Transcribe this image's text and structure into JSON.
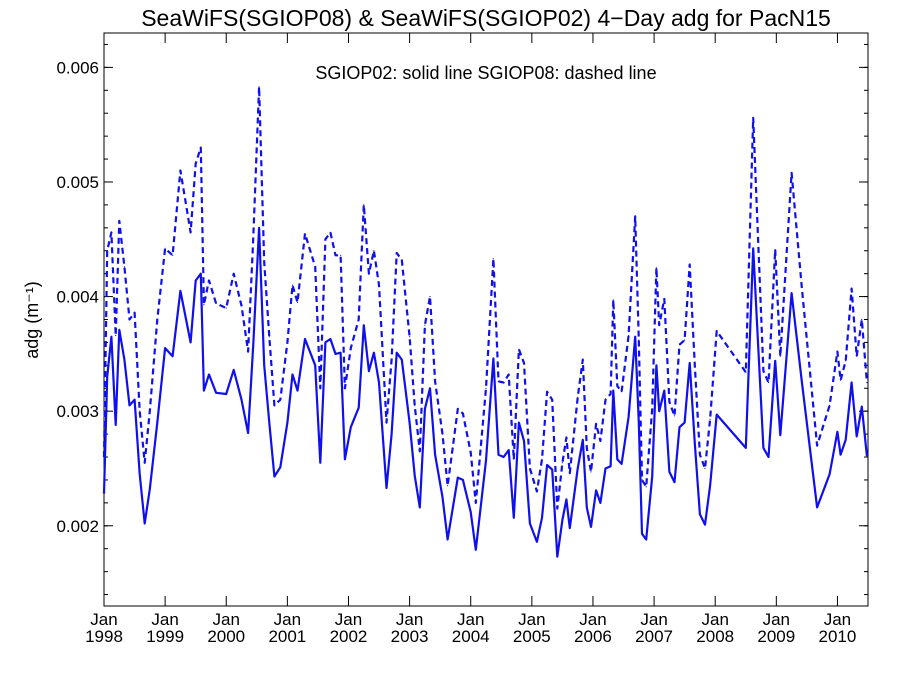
{
  "chart_data": {
    "type": "line",
    "title": "SeaWiFS(SGIOP08) & SeaWiFS(SGIOP02) 4−Day adg for PacN15",
    "ylabel": "adg (m⁻¹)",
    "xlabel": "",
    "annotation": "SGIOP02: solid line   SGIOP08: dashed line",
    "xlim": [
      "1998-01-01",
      "2010-07-01"
    ],
    "ylim": [
      0.0013,
      0.0063
    ],
    "y_ticks": [
      "0.002",
      "0.003",
      "0.004",
      "0.005",
      "0.006"
    ],
    "x_tick_month": "Jan",
    "x_tick_years": [
      "1998",
      "1999",
      "2000",
      "2001",
      "2002",
      "2003",
      "2004",
      "2005",
      "2006",
      "2007",
      "2008",
      "2009",
      "2010"
    ],
    "color": "#1010ee",
    "series": [
      {
        "name": "SGIOP02",
        "style": "solid",
        "points": [
          [
            "1998-01-01",
            0.00228
          ],
          [
            "1998-01-20",
            0.0033
          ],
          [
            "1998-02-15",
            0.00365
          ],
          [
            "1998-03-10",
            0.00288
          ],
          [
            "1998-04-01",
            0.00371
          ],
          [
            "1998-05-01",
            0.00345
          ],
          [
            "1998-06-01",
            0.00305
          ],
          [
            "1998-07-01",
            0.0031
          ],
          [
            "1998-08-01",
            0.00245
          ],
          [
            "1998-09-01",
            0.00202
          ],
          [
            "1998-10-01",
            0.00232
          ],
          [
            "1998-11-15",
            0.0029
          ],
          [
            "1999-01-01",
            0.00355
          ],
          [
            "1999-02-15",
            0.00348
          ],
          [
            "1999-04-01",
            0.00405
          ],
          [
            "1999-06-01",
            0.0036
          ],
          [
            "1999-07-01",
            0.00414
          ],
          [
            "1999-08-01",
            0.0042
          ],
          [
            "1999-08-20",
            0.00318
          ],
          [
            "1999-09-20",
            0.00332
          ],
          [
            "1999-11-01",
            0.00316
          ],
          [
            "2000-01-01",
            0.00315
          ],
          [
            "2000-02-15",
            0.00336
          ],
          [
            "2000-04-01",
            0.0031
          ],
          [
            "2000-05-10",
            0.00281
          ],
          [
            "2000-06-10",
            0.00357
          ],
          [
            "2000-07-15",
            0.0046
          ],
          [
            "2000-08-15",
            0.0034
          ],
          [
            "2000-09-15",
            0.0029
          ],
          [
            "2000-10-15",
            0.00243
          ],
          [
            "2000-11-20",
            0.00251
          ],
          [
            "2001-01-01",
            0.0029
          ],
          [
            "2001-02-01",
            0.00332
          ],
          [
            "2001-03-01",
            0.00318
          ],
          [
            "2001-04-15",
            0.00363
          ],
          [
            "2001-06-15",
            0.0034
          ],
          [
            "2001-07-15",
            0.00255
          ],
          [
            "2001-08-15",
            0.0036
          ],
          [
            "2001-09-15",
            0.00363
          ],
          [
            "2001-10-15",
            0.0035
          ],
          [
            "2001-11-15",
            0.00351
          ],
          [
            "2001-12-10",
            0.00258
          ],
          [
            "2002-01-15",
            0.00286
          ],
          [
            "2002-03-01",
            0.00303
          ],
          [
            "2002-04-01",
            0.00375
          ],
          [
            "2002-05-01",
            0.00335
          ],
          [
            "2002-06-01",
            0.00351
          ],
          [
            "2002-07-01",
            0.00325
          ],
          [
            "2002-08-15",
            0.00233
          ],
          [
            "2002-09-15",
            0.0028
          ],
          [
            "2002-10-15",
            0.00351
          ],
          [
            "2002-11-15",
            0.00345
          ],
          [
            "2003-01-01",
            0.0029
          ],
          [
            "2003-02-01",
            0.00244
          ],
          [
            "2003-03-01",
            0.00216
          ],
          [
            "2003-04-01",
            0.00302
          ],
          [
            "2003-05-01",
            0.0032
          ],
          [
            "2003-06-01",
            0.00262
          ],
          [
            "2003-07-15",
            0.00225
          ],
          [
            "2003-08-15",
            0.00188
          ],
          [
            "2003-09-15",
            0.00215
          ],
          [
            "2003-10-15",
            0.00242
          ],
          [
            "2003-11-15",
            0.0024
          ],
          [
            "2004-01-01",
            0.00212
          ],
          [
            "2004-02-01",
            0.00179
          ],
          [
            "2004-03-01",
            0.00218
          ],
          [
            "2004-04-01",
            0.00257
          ],
          [
            "2004-05-15",
            0.00346
          ],
          [
            "2004-06-15",
            0.00262
          ],
          [
            "2004-07-15",
            0.0026
          ],
          [
            "2004-08-15",
            0.00266
          ],
          [
            "2004-09-15",
            0.00207
          ],
          [
            "2004-10-15",
            0.0029
          ],
          [
            "2004-11-15",
            0.00274
          ],
          [
            "2004-12-20",
            0.00202
          ],
          [
            "2005-02-01",
            0.00186
          ],
          [
            "2005-03-01",
            0.00207
          ],
          [
            "2005-04-01",
            0.00253
          ],
          [
            "2005-05-01",
            0.00249
          ],
          [
            "2005-06-01",
            0.00173
          ],
          [
            "2005-07-01",
            0.00205
          ],
          [
            "2005-07-25",
            0.00223
          ],
          [
            "2005-08-15",
            0.00198
          ],
          [
            "2005-10-01",
            0.0025
          ],
          [
            "2005-11-01",
            0.00275
          ],
          [
            "2005-11-25",
            0.00216
          ],
          [
            "2005-12-20",
            0.00199
          ],
          [
            "2006-01-20",
            0.00231
          ],
          [
            "2006-02-15",
            0.0022
          ],
          [
            "2006-03-15",
            0.0025
          ],
          [
            "2006-04-15",
            0.00252
          ],
          [
            "2006-05-01",
            0.00318
          ],
          [
            "2006-05-25",
            0.00258
          ],
          [
            "2006-06-20",
            0.00254
          ],
          [
            "2006-08-01",
            0.00295
          ],
          [
            "2006-09-10",
            0.00365
          ],
          [
            "2006-10-01",
            0.0029
          ],
          [
            "2006-10-20",
            0.00193
          ],
          [
            "2006-11-15",
            0.00188
          ],
          [
            "2006-12-20",
            0.00243
          ],
          [
            "2007-01-15",
            0.0034
          ],
          [
            "2007-02-01",
            0.003
          ],
          [
            "2007-03-01",
            0.00318
          ],
          [
            "2007-04-01",
            0.00247
          ],
          [
            "2007-05-01",
            0.00238
          ],
          [
            "2007-06-01",
            0.00286
          ],
          [
            "2007-07-01",
            0.0029
          ],
          [
            "2007-08-01",
            0.00342
          ],
          [
            "2007-09-01",
            0.00272
          ],
          [
            "2007-10-01",
            0.0021
          ],
          [
            "2007-11-01",
            0.00201
          ],
          [
            "2007-12-01",
            0.00235
          ],
          [
            "2008-01-10",
            0.00297
          ],
          [
            "2008-07-01",
            0.00268
          ],
          [
            "2008-08-15",
            0.00442
          ],
          [
            "2008-10-15",
            0.00268
          ],
          [
            "2008-11-15",
            0.0026
          ],
          [
            "2008-12-25",
            0.00344
          ],
          [
            "2009-01-25",
            0.00279
          ],
          [
            "2009-04-01",
            0.00403
          ],
          [
            "2009-06-01",
            0.00326
          ],
          [
            "2009-09-01",
            0.00216
          ],
          [
            "2009-11-15",
            0.00245
          ],
          [
            "2010-01-01",
            0.00282
          ],
          [
            "2010-01-20",
            0.00262
          ],
          [
            "2010-02-20",
            0.00275
          ],
          [
            "2010-03-25",
            0.00325
          ],
          [
            "2010-04-25",
            0.00278
          ],
          [
            "2010-05-25",
            0.00304
          ],
          [
            "2010-06-25",
            0.00261
          ]
        ]
      },
      {
        "name": "SGIOP08",
        "style": "dashed",
        "points": [
          [
            "1998-01-01",
            0.0026
          ],
          [
            "1998-01-20",
            0.0044
          ],
          [
            "1998-02-15",
            0.00456
          ],
          [
            "1998-03-10",
            0.00366
          ],
          [
            "1998-04-01",
            0.00466
          ],
          [
            "1998-05-01",
            0.00426
          ],
          [
            "1998-06-01",
            0.0038
          ],
          [
            "1998-07-01",
            0.00386
          ],
          [
            "1998-08-01",
            0.003
          ],
          [
            "1998-09-01",
            0.00255
          ],
          [
            "1998-10-01",
            0.003
          ],
          [
            "1998-11-15",
            0.0038
          ],
          [
            "1999-01-01",
            0.00442
          ],
          [
            "1999-02-15",
            0.00436
          ],
          [
            "1999-04-01",
            0.0051
          ],
          [
            "1999-06-01",
            0.00456
          ],
          [
            "1999-07-01",
            0.00516
          ],
          [
            "1999-08-01",
            0.0053
          ],
          [
            "1999-08-20",
            0.00393
          ],
          [
            "1999-09-20",
            0.00414
          ],
          [
            "1999-11-01",
            0.00394
          ],
          [
            "2000-01-01",
            0.0039
          ],
          [
            "2000-02-15",
            0.0042
          ],
          [
            "2000-04-01",
            0.00392
          ],
          [
            "2000-05-10",
            0.00352
          ],
          [
            "2000-06-10",
            0.0045
          ],
          [
            "2000-07-15",
            0.00583
          ],
          [
            "2000-08-15",
            0.0043
          ],
          [
            "2000-09-15",
            0.00365
          ],
          [
            "2000-10-15",
            0.00305
          ],
          [
            "2000-11-20",
            0.0031
          ],
          [
            "2001-01-01",
            0.0036
          ],
          [
            "2001-02-01",
            0.0041
          ],
          [
            "2001-03-01",
            0.00395
          ],
          [
            "2001-04-15",
            0.00455
          ],
          [
            "2001-06-15",
            0.00426
          ],
          [
            "2001-07-15",
            0.0032
          ],
          [
            "2001-08-15",
            0.0045
          ],
          [
            "2001-09-15",
            0.00456
          ],
          [
            "2001-10-15",
            0.00436
          ],
          [
            "2001-11-15",
            0.00436
          ],
          [
            "2001-12-10",
            0.0032
          ],
          [
            "2002-01-15",
            0.00355
          ],
          [
            "2002-03-01",
            0.0038
          ],
          [
            "2002-04-01",
            0.0048
          ],
          [
            "2002-05-01",
            0.0042
          ],
          [
            "2002-06-01",
            0.0044
          ],
          [
            "2002-07-01",
            0.0041
          ],
          [
            "2002-08-15",
            0.0029
          ],
          [
            "2002-09-15",
            0.00345
          ],
          [
            "2002-10-15",
            0.00438
          ],
          [
            "2002-11-15",
            0.00432
          ],
          [
            "2003-01-01",
            0.00365
          ],
          [
            "2003-02-01",
            0.00305
          ],
          [
            "2003-03-01",
            0.00265
          ],
          [
            "2003-04-01",
            0.00375
          ],
          [
            "2003-05-01",
            0.004
          ],
          [
            "2003-06-01",
            0.00326
          ],
          [
            "2003-07-15",
            0.0028
          ],
          [
            "2003-08-15",
            0.00235
          ],
          [
            "2003-09-15",
            0.00268
          ],
          [
            "2003-10-15",
            0.00302
          ],
          [
            "2003-11-15",
            0.00298
          ],
          [
            "2004-01-01",
            0.00264
          ],
          [
            "2004-02-01",
            0.0022
          ],
          [
            "2004-03-01",
            0.0027
          ],
          [
            "2004-04-01",
            0.0032
          ],
          [
            "2004-05-15",
            0.00433
          ],
          [
            "2004-06-15",
            0.00326
          ],
          [
            "2004-07-15",
            0.00325
          ],
          [
            "2004-08-15",
            0.00332
          ],
          [
            "2004-09-15",
            0.00258
          ],
          [
            "2004-10-15",
            0.00354
          ],
          [
            "2004-11-15",
            0.00342
          ],
          [
            "2004-12-20",
            0.0025
          ],
          [
            "2005-02-01",
            0.0023
          ],
          [
            "2005-03-01",
            0.00258
          ],
          [
            "2005-04-01",
            0.00317
          ],
          [
            "2005-05-01",
            0.0031
          ],
          [
            "2005-06-01",
            0.00215
          ],
          [
            "2005-07-01",
            0.00255
          ],
          [
            "2005-07-25",
            0.00277
          ],
          [
            "2005-08-15",
            0.00246
          ],
          [
            "2005-10-01",
            0.00312
          ],
          [
            "2005-11-01",
            0.00345
          ],
          [
            "2005-11-25",
            0.00268
          ],
          [
            "2005-12-20",
            0.00247
          ],
          [
            "2006-01-20",
            0.00289
          ],
          [
            "2006-02-15",
            0.00274
          ],
          [
            "2006-03-15",
            0.0031
          ],
          [
            "2006-04-15",
            0.00315
          ],
          [
            "2006-05-01",
            0.00397
          ],
          [
            "2006-05-25",
            0.00322
          ],
          [
            "2006-06-20",
            0.00317
          ],
          [
            "2006-08-01",
            0.00366
          ],
          [
            "2006-09-10",
            0.0047
          ],
          [
            "2006-10-01",
            0.00362
          ],
          [
            "2006-10-20",
            0.0024
          ],
          [
            "2006-11-15",
            0.00234
          ],
          [
            "2006-12-20",
            0.00302
          ],
          [
            "2007-01-15",
            0.00425
          ],
          [
            "2007-02-01",
            0.00375
          ],
          [
            "2007-03-01",
            0.00398
          ],
          [
            "2007-04-01",
            0.00308
          ],
          [
            "2007-05-01",
            0.00296
          ],
          [
            "2007-06-01",
            0.00358
          ],
          [
            "2007-07-01",
            0.00362
          ],
          [
            "2007-08-01",
            0.00428
          ],
          [
            "2007-09-01",
            0.0034
          ],
          [
            "2007-10-01",
            0.00262
          ],
          [
            "2007-11-01",
            0.0025
          ],
          [
            "2007-12-01",
            0.00293
          ],
          [
            "2008-01-10",
            0.0037
          ],
          [
            "2008-07-01",
            0.00334
          ],
          [
            "2008-08-15",
            0.00556
          ],
          [
            "2008-10-15",
            0.00335
          ],
          [
            "2008-11-15",
            0.00325
          ],
          [
            "2008-12-25",
            0.00441
          ],
          [
            "2009-01-25",
            0.00348
          ],
          [
            "2009-04-01",
            0.00508
          ],
          [
            "2009-06-01",
            0.00408
          ],
          [
            "2009-09-01",
            0.0027
          ],
          [
            "2009-11-15",
            0.00305
          ],
          [
            "2010-01-01",
            0.00352
          ],
          [
            "2010-01-20",
            0.00327
          ],
          [
            "2010-02-20",
            0.00344
          ],
          [
            "2010-03-25",
            0.00407
          ],
          [
            "2010-04-25",
            0.00348
          ],
          [
            "2010-05-25",
            0.0038
          ],
          [
            "2010-06-25",
            0.00325
          ]
        ]
      }
    ]
  }
}
